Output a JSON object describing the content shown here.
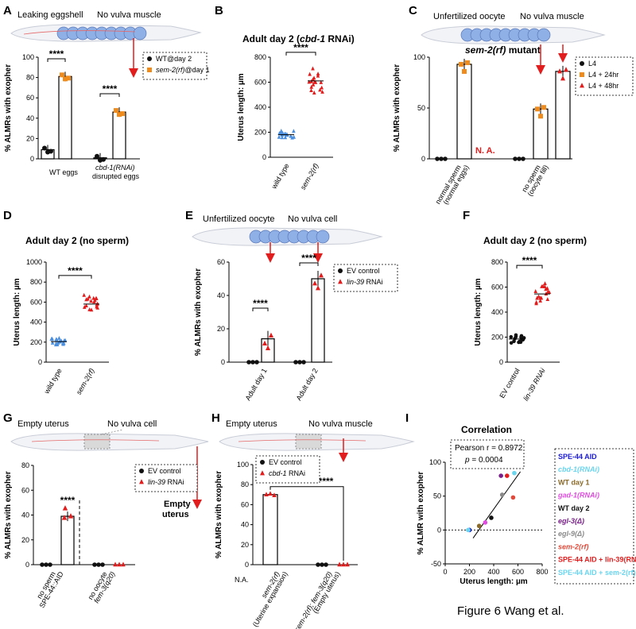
{
  "figure_caption": "Figure 6 Wang et al.",
  "colors": {
    "black": "#111111",
    "orange": "#ef8a1d",
    "red": "#e21d1d",
    "blue": "#4b8fde",
    "cellblue": "#8fb0e6"
  },
  "panels": {
    "A": {
      "letter": "A",
      "label1": "Leaking eggshell",
      "label2": "No vulva muscle"
    },
    "B": {
      "letter": "B",
      "title_pre": "Adult day 2 (",
      "title_gene": "cbd-1",
      "title_post": " RNAi)"
    },
    "C": {
      "letter": "C",
      "label1": "Unfertilized oocyte",
      "label2": "No vulva muscle",
      "sublabel_gene": "sem-2(rf)",
      "sublabel_post": " mutant",
      "na": "N. A."
    },
    "D": {
      "letter": "D",
      "title": "Adult day 2 (no sperm)"
    },
    "E": {
      "letter": "E",
      "label1": "Unfertilized oocyte",
      "label2": "No vulva cell"
    },
    "F": {
      "letter": "F",
      "title": "Adult day 2 (no sperm)"
    },
    "G": {
      "letter": "G",
      "label1": "Empty uterus",
      "label2": "No vulva cell",
      "empty_line1": "Empty",
      "empty_line2": "uterus"
    },
    "H": {
      "letter": "H",
      "label1": "Empty uterus",
      "label2": "No vulva muscle",
      "na": "N.A."
    },
    "I": {
      "letter": "I",
      "title": "Correlation",
      "stat1": "Pearson r = 0.8972",
      "stat2_pre": "p",
      "stat2_post": " = 0.0004"
    }
  },
  "chart_data": [
    {
      "panel": "A",
      "type": "bar",
      "ylabel": "% ALMRs with exopher",
      "ylim": [
        0,
        100
      ],
      "yticks": [
        "0",
        "20",
        "40",
        "60",
        "80",
        "100"
      ],
      "groups": [
        {
          "label": "WT eggs",
          "bars": [
            9,
            81
          ]
        },
        {
          "label": "cbd-1(RNAi)",
          "label2": "disrupted eggs",
          "bars": [
            1,
            46
          ]
        }
      ],
      "legend": [
        {
          "name": "WT@day 2",
          "marker": "circle",
          "color": "black"
        },
        {
          "name": "sem-2(rf)",
          "name_post": "@day 1",
          "marker": "square",
          "color": "orange"
        }
      ],
      "significance": [
        "****",
        "****"
      ]
    },
    {
      "panel": "B",
      "type": "scatter",
      "ylabel": "Uterus length: µm",
      "ylim": [
        0,
        800
      ],
      "yticks": [
        "0",
        "200",
        "400",
        "600",
        "800"
      ],
      "categories": [
        "wild type",
        "sem-2(rf)"
      ],
      "means": [
        180,
        610
      ],
      "significance": "****"
    },
    {
      "panel": "C",
      "type": "bar",
      "ylabel": "% ALMRs with exopher",
      "ylim": [
        0,
        100
      ],
      "yticks": [
        "0",
        "50",
        "100"
      ],
      "groups": [
        {
          "label": "normal sperm",
          "label2": "(normal eggs)",
          "bars": [
            0,
            93,
            null
          ]
        },
        {
          "label": "no sperm",
          "label2": "(oocyte fill)",
          "bars": [
            0,
            49,
            86
          ]
        }
      ],
      "legend": [
        {
          "name": "L4",
          "marker": "circle",
          "color": "black"
        },
        {
          "name": "L4 + 24hr",
          "marker": "square",
          "color": "orange"
        },
        {
          "name": "L4 + 48hr",
          "marker": "triangle",
          "color": "red"
        }
      ]
    },
    {
      "panel": "D",
      "type": "scatter",
      "ylabel": "Uterus length: µm",
      "ylim": [
        0,
        1000
      ],
      "yticks": [
        "0",
        "200",
        "400",
        "600",
        "800",
        "1000"
      ],
      "categories": [
        "wild type",
        "sem-2(rf)"
      ],
      "means": [
        205,
        580
      ],
      "significance": "****"
    },
    {
      "panel": "E",
      "type": "bar",
      "ylabel": "% ALMRs with exopher",
      "ylim": [
        0,
        60
      ],
      "yticks": [
        "0",
        "20",
        "40",
        "60"
      ],
      "groups": [
        {
          "label": "Adult day 1",
          "bars": [
            0,
            14
          ]
        },
        {
          "label": "Adult day 2",
          "bars": [
            0,
            50
          ]
        }
      ],
      "legend": [
        {
          "name": "EV control",
          "marker": "circle",
          "color": "black"
        },
        {
          "name": "lin-39",
          "name_post": " RNAi",
          "marker": "triangle",
          "color": "red"
        }
      ],
      "significance": [
        "****",
        "****"
      ]
    },
    {
      "panel": "F",
      "type": "scatter",
      "ylabel": "Uterus length: µm",
      "ylim": [
        0,
        800
      ],
      "yticks": [
        "0",
        "200",
        "400",
        "600",
        "800"
      ],
      "categories": [
        "EV control",
        "lin-39 RNAi"
      ],
      "means": [
        185,
        545
      ],
      "significance": "****"
    },
    {
      "panel": "G",
      "type": "bar",
      "ylabel": "% ALMRs with exopher",
      "ylim": [
        0,
        80
      ],
      "yticks": [
        "0",
        "20",
        "40",
        "60",
        "80"
      ],
      "groups": [
        {
          "label": "no sperm",
          "label2": "SPE-44::AID",
          "bars": [
            0,
            39
          ]
        },
        {
          "label": "no oocyte",
          "label2": "fem-3(q20)",
          "bars": [
            0,
            0
          ]
        }
      ],
      "legend": [
        {
          "name": "EV control",
          "marker": "circle",
          "color": "black"
        },
        {
          "name": "lin-39",
          "name_post": " RNAi",
          "marker": "triangle",
          "color": "red"
        }
      ],
      "significance": "****"
    },
    {
      "panel": "H",
      "type": "bar",
      "ylabel": "% ALMRs with exopher",
      "ylim": [
        0,
        100
      ],
      "yticks": [
        "0",
        "20",
        "40",
        "60",
        "80",
        "100"
      ],
      "groups": [
        {
          "label": "sem-2(rf)",
          "label2": "(Uterine expansion)",
          "bars": [
            null,
            70
          ]
        },
        {
          "label": "sem-2(rf); fem-3(q20)",
          "label2": "(Empty uterus)",
          "bars": [
            0,
            0
          ]
        }
      ],
      "legend": [
        {
          "name": "EV control",
          "marker": "circle",
          "color": "black"
        },
        {
          "name": "cbd-1",
          "name_post": " RNAi",
          "marker": "triangle",
          "color": "red"
        }
      ],
      "significance": "****"
    },
    {
      "panel": "I",
      "type": "scatter",
      "xlabel": "Uterus length: µm",
      "ylabel": "% ALMR with exopher",
      "xlim": [
        0,
        800
      ],
      "ylim": [
        -50,
        100
      ],
      "xticks": [
        "0",
        "200",
        "400",
        "600",
        "800"
      ],
      "yticks": [
        "-50",
        "0",
        "50",
        "100"
      ],
      "pearson_r": 0.8972,
      "p_value": 0.0004,
      "points": [
        {
          "name": "SPE-44 AID",
          "x": 200,
          "y": 0,
          "color": "#1b1bd6"
        },
        {
          "name": "cbd-1(RNAi)",
          "x": 190,
          "y": 0,
          "color": "#6ad5ee"
        },
        {
          "name": "WT day 1",
          "x": 280,
          "y": 6,
          "color": "#8a6a2a"
        },
        {
          "name": "gad-1(RNAi)",
          "x": 330,
          "y": 11,
          "color": "#e04ce0"
        },
        {
          "name": "WT day 2",
          "x": 380,
          "y": 18,
          "color": "#111111"
        },
        {
          "name": "egl-3(Δ)",
          "x": 460,
          "y": 80,
          "color": "#7a1f8a"
        },
        {
          "name": "egl-9(Δ)",
          "x": 470,
          "y": 52,
          "color": "#8a8a8a"
        },
        {
          "name": "sem-2(rf)",
          "x": 560,
          "y": 48,
          "color": "#e04a3a"
        },
        {
          "name": "SPE-44 AID + lin-39(RNAi)",
          "x": 510,
          "y": 80,
          "color": "#e21d1d"
        },
        {
          "name": "SPE-44 AID + sem-2(rf)",
          "x": 570,
          "y": 84,
          "color": "#6ad5ee"
        }
      ],
      "fit": {
        "x1": 230,
        "y1": -12,
        "x2": 620,
        "y2": 86
      }
    }
  ]
}
